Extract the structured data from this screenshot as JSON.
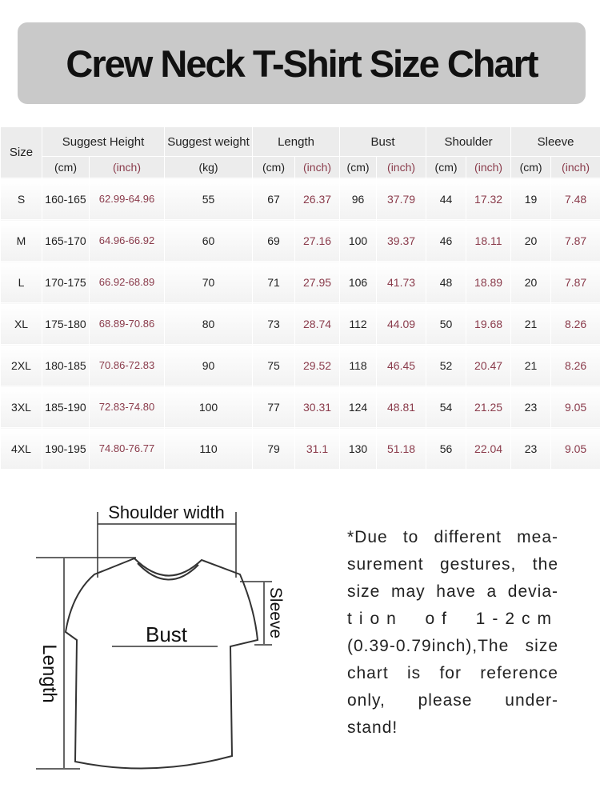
{
  "header": {
    "title": "Crew Neck T-Shirt Size Chart"
  },
  "table": {
    "size_label": "Size",
    "groups": [
      "Suggest Height",
      "Suggest weight",
      "Length",
      "Bust",
      "Shoulder",
      "Sleeve"
    ],
    "units": [
      "(cm)",
      "(inch)",
      "(kg)",
      "(cm)",
      "(inch)",
      "(cm)",
      "(inch)",
      "(cm)",
      "(inch)",
      "(cm)",
      "(inch)"
    ],
    "rows": [
      [
        "S",
        "160-165",
        "62.99-64.96",
        "55",
        "67",
        "26.37",
        "96",
        "37.79",
        "44",
        "17.32",
        "19",
        "7.48"
      ],
      [
        "M",
        "165-170",
        "64.96-66.92",
        "60",
        "69",
        "27.16",
        "100",
        "39.37",
        "46",
        "18.11",
        "20",
        "7.87"
      ],
      [
        "L",
        "170-175",
        "66.92-68.89",
        "70",
        "71",
        "27.95",
        "106",
        "41.73",
        "48",
        "18.89",
        "20",
        "7.87"
      ],
      [
        "XL",
        "175-180",
        "68.89-70.86",
        "80",
        "73",
        "28.74",
        "112",
        "44.09",
        "50",
        "19.68",
        "21",
        "8.26"
      ],
      [
        "2XL",
        "180-185",
        "70.86-72.83",
        "90",
        "75",
        "29.52",
        "118",
        "46.45",
        "52",
        "20.47",
        "21",
        "8.26"
      ],
      [
        "3XL",
        "185-190",
        "72.83-74.80",
        "100",
        "77",
        "30.31",
        "124",
        "48.81",
        "54",
        "21.25",
        "23",
        "9.05"
      ],
      [
        "4XL",
        "190-195",
        "74.80-76.77",
        "110",
        "79",
        "31.1",
        "130",
        "51.18",
        "56",
        "22.04",
        "23",
        "9.05"
      ]
    ]
  },
  "diagram": {
    "shoulder": "Shoulder width",
    "bust": "Bust",
    "sleeve": "Sleeve",
    "length": "Length"
  },
  "note": {
    "lines": [
      "*Due to different mea-",
      "surement gestures, the",
      "size may have a devia-",
      "tion of 1-2cm",
      "(0.39-0.79inch),The size",
      "chart is for reference",
      "only, please under-",
      "stand!"
    ]
  }
}
